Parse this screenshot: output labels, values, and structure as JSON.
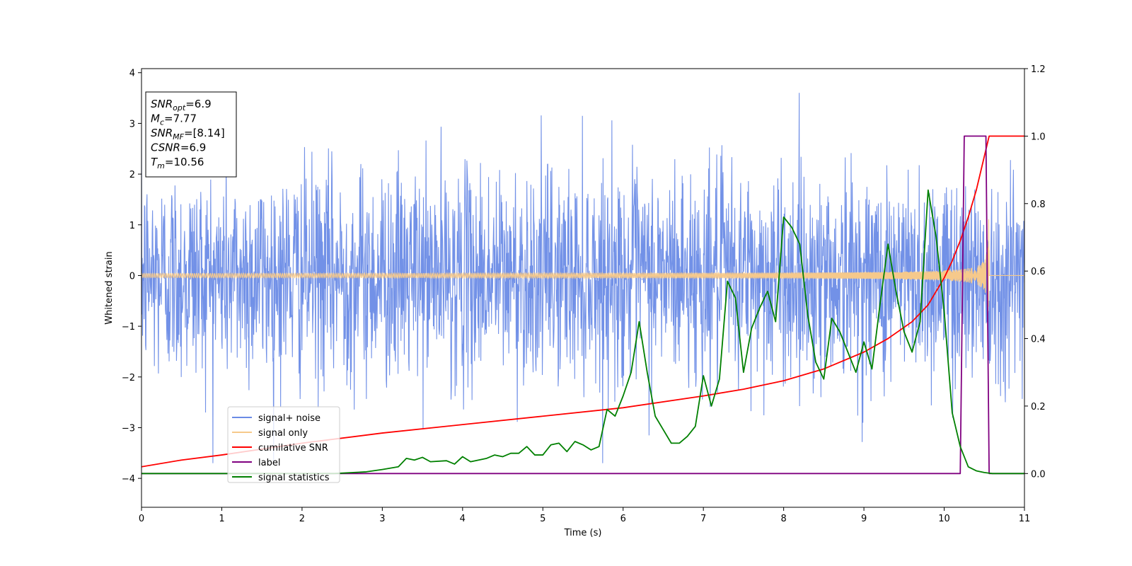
{
  "chart_data": {
    "type": "line",
    "xlabel": "Time (s)",
    "ylabel": "Whitened strain",
    "xlim": [
      0,
      11
    ],
    "ylim_left": [
      -4.57,
      4.08
    ],
    "ylim_right": [
      -0.1,
      1.2
    ],
    "x_ticks": [
      0,
      1,
      2,
      3,
      4,
      5,
      6,
      7,
      8,
      9,
      10,
      11
    ],
    "y_ticks_left": [
      -4,
      -3,
      -2,
      -1,
      0,
      1,
      2,
      3,
      4
    ],
    "y_ticks_right": [
      0.0,
      0.2,
      0.4,
      0.6,
      0.8,
      1.0,
      1.2
    ],
    "y_tick_labels_right": [
      "0.0",
      "0.2",
      "0.4",
      "0.6",
      "0.8",
      "1.0",
      "1.2"
    ],
    "y_tick_labels_left": [
      "−4",
      "−3",
      "−2",
      "−1",
      "0",
      "1",
      "2",
      "3",
      "4"
    ],
    "grid": false,
    "legend_position": "lower-left",
    "info_box": {
      "position": "top-left",
      "lines": [
        {
          "sym": "SNR",
          "sub": "opt",
          "val": "=6.9"
        },
        {
          "sym": "M",
          "sub": "c",
          "val": "=7.77"
        },
        {
          "sym": "SNR",
          "sub": "MF",
          "val": "=[8.14]"
        },
        {
          "sym": "CSNR",
          "sub": "",
          "val": "=6.9"
        },
        {
          "sym": "T",
          "sub": "m",
          "val": "=10.56"
        }
      ]
    },
    "series": [
      {
        "name": "signal+ noise",
        "axis": "left",
        "color": "#6a8be6",
        "description_kind": "noise",
        "noise_std": 1.0,
        "noise_env_max": 3.7,
        "samples": 2400,
        "x_range": [
          0,
          11
        ]
      },
      {
        "name": "signal only",
        "axis": "left",
        "color": "#f6c98b",
        "description_kind": "chirp",
        "merger_time": 10.56,
        "amplitude_at_end": 1.1,
        "x_range": [
          0,
          11
        ]
      },
      {
        "name": "cumilative SNR",
        "axis": "right",
        "color": "#ff0000",
        "x": [
          0,
          0.5,
          1,
          2,
          3,
          4,
          5,
          6,
          7,
          7.5,
          8,
          8.5,
          9,
          9.3,
          9.6,
          9.8,
          10,
          10.1,
          10.2,
          10.3,
          10.4,
          10.5,
          10.56,
          10.6,
          11
        ],
        "y": [
          0.02,
          0.04,
          0.055,
          0.09,
          0.12,
          0.145,
          0.17,
          0.195,
          0.23,
          0.25,
          0.275,
          0.31,
          0.36,
          0.4,
          0.45,
          0.5,
          0.58,
          0.63,
          0.69,
          0.76,
          0.84,
          0.94,
          1.0,
          1.0,
          1.0
        ]
      },
      {
        "name": "label",
        "axis": "right",
        "color": "#800080",
        "x": [
          0,
          10.2,
          10.25,
          10.52,
          10.56,
          11
        ],
        "y": [
          0,
          0,
          1.0,
          1.0,
          0,
          0
        ]
      },
      {
        "name": "signal statistics",
        "axis": "right",
        "color": "#008000",
        "x": [
          0,
          2.4,
          2.8,
          3.0,
          3.2,
          3.3,
          3.4,
          3.5,
          3.6,
          3.8,
          3.9,
          4.0,
          4.1,
          4.2,
          4.3,
          4.4,
          4.5,
          4.6,
          4.7,
          4.8,
          4.9,
          5.0,
          5.1,
          5.2,
          5.3,
          5.4,
          5.5,
          5.6,
          5.7,
          5.8,
          5.9,
          6.0,
          6.1,
          6.2,
          6.3,
          6.4,
          6.5,
          6.6,
          6.7,
          6.8,
          6.9,
          7.0,
          7.1,
          7.2,
          7.3,
          7.4,
          7.5,
          7.6,
          7.7,
          7.8,
          7.9,
          8.0,
          8.1,
          8.2,
          8.3,
          8.4,
          8.5,
          8.6,
          8.7,
          8.8,
          8.9,
          9.0,
          9.1,
          9.2,
          9.3,
          9.4,
          9.5,
          9.6,
          9.7,
          9.8,
          9.9,
          10.0,
          10.1,
          10.2,
          10.3,
          10.4,
          10.5,
          10.6,
          10.8,
          11.0
        ],
        "y": [
          0,
          0.0,
          0.005,
          0.012,
          0.02,
          0.045,
          0.04,
          0.048,
          0.035,
          0.038,
          0.028,
          0.05,
          0.035,
          0.04,
          0.045,
          0.055,
          0.05,
          0.06,
          0.06,
          0.08,
          0.055,
          0.055,
          0.085,
          0.09,
          0.065,
          0.095,
          0.085,
          0.07,
          0.08,
          0.19,
          0.17,
          0.23,
          0.3,
          0.45,
          0.3,
          0.17,
          0.13,
          0.09,
          0.09,
          0.11,
          0.14,
          0.29,
          0.2,
          0.28,
          0.57,
          0.52,
          0.3,
          0.43,
          0.49,
          0.54,
          0.45,
          0.76,
          0.73,
          0.68,
          0.47,
          0.33,
          0.28,
          0.46,
          0.42,
          0.36,
          0.3,
          0.39,
          0.31,
          0.5,
          0.68,
          0.54,
          0.42,
          0.36,
          0.45,
          0.84,
          0.7,
          0.48,
          0.18,
          0.08,
          0.02,
          0.008,
          0.003,
          0.0,
          0.0,
          0.0
        ]
      }
    ]
  }
}
